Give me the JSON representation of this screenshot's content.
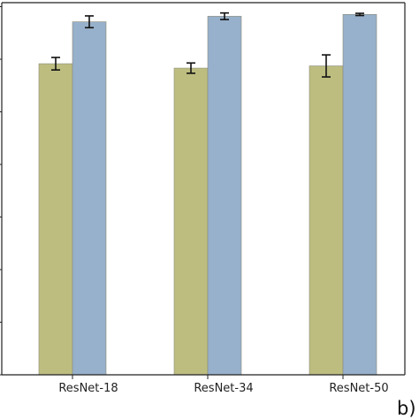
{
  "chart_data": {
    "type": "bar",
    "categories": [
      "ResNet-18",
      "ResNet-34",
      "ResNet-50"
    ],
    "series": [
      {
        "values": [
          0.846,
          0.834,
          0.84
        ],
        "errors": [
          0.017,
          0.014,
          0.03
        ],
        "color": "#bdbd80"
      },
      {
        "values": [
          0.96,
          0.975,
          0.98
        ],
        "errors": [
          0.016,
          0.009,
          0.003
        ],
        "color": "#97b0cb"
      }
    ],
    "ylim": [
      0,
      1
    ],
    "ytick_labels": [],
    "grid": false,
    "panel_label": "b)"
  }
}
